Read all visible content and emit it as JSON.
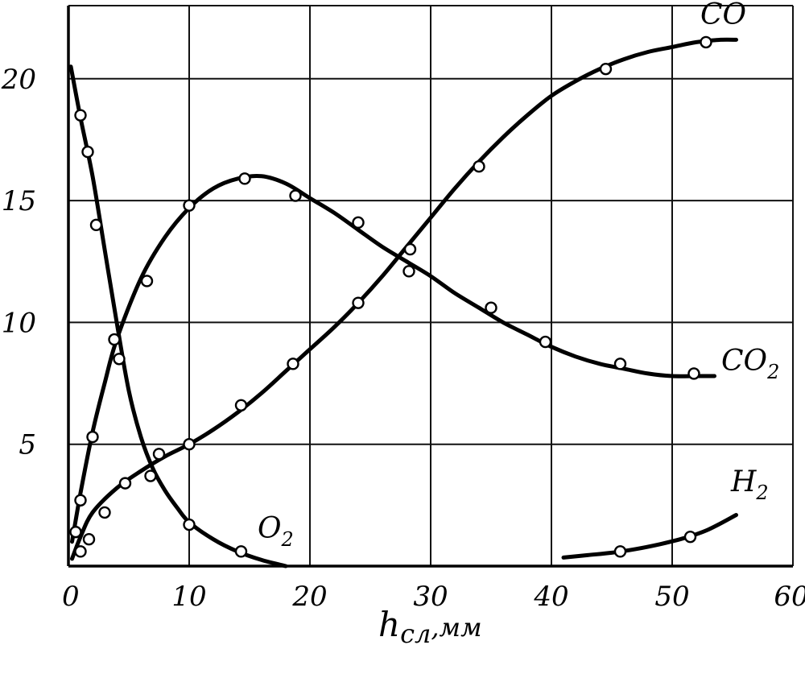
{
  "chart_data": {
    "type": "line",
    "title": "",
    "xlabel": "h",
    "xlabel_sub": "сл",
    "xlabel_unit": ",мм",
    "ylabel": "",
    "xlim": [
      0,
      60
    ],
    "ylim": [
      0,
      23
    ],
    "xticks": [
      "0",
      "10",
      "20",
      "30",
      "40",
      "50",
      "60"
    ],
    "yticks": [
      "5",
      "10",
      "15",
      "20"
    ],
    "grid": true,
    "series": [
      {
        "name": "O",
        "sub": "2",
        "curve": [
          [
            0.2,
            20.5
          ],
          [
            1,
            18.4
          ],
          [
            2,
            16
          ],
          [
            3,
            13
          ],
          [
            4,
            10
          ],
          [
            5,
            7.2
          ],
          [
            6,
            5.3
          ],
          [
            7,
            4
          ],
          [
            8,
            3.1
          ],
          [
            9,
            2.4
          ],
          [
            10,
            1.8
          ],
          [
            12,
            1.1
          ],
          [
            14,
            0.6
          ],
          [
            16,
            0.25
          ],
          [
            18,
            0
          ]
        ],
        "points": [
          [
            1,
            18.5
          ],
          [
            1.6,
            17
          ],
          [
            2.3,
            14
          ],
          [
            4.2,
            8.5
          ],
          [
            6.8,
            3.7
          ],
          [
            10,
            1.7
          ],
          [
            14.3,
            0.6
          ]
        ]
      },
      {
        "name": "CO",
        "sub": "2",
        "curve": [
          [
            0.3,
            1
          ],
          [
            1,
            3
          ],
          [
            2,
            5.5
          ],
          [
            3,
            7.5
          ],
          [
            4,
            9.3
          ],
          [
            6,
            11.8
          ],
          [
            8,
            13.5
          ],
          [
            10,
            14.7
          ],
          [
            12,
            15.5
          ],
          [
            14,
            15.9
          ],
          [
            16,
            16
          ],
          [
            18,
            15.7
          ],
          [
            20,
            15.1
          ],
          [
            22,
            14.5
          ],
          [
            24,
            13.8
          ],
          [
            26,
            13.1
          ],
          [
            28,
            12.5
          ],
          [
            30,
            11.9
          ],
          [
            32,
            11.2
          ],
          [
            34,
            10.6
          ],
          [
            36,
            10
          ],
          [
            38,
            9.5
          ],
          [
            40,
            9
          ],
          [
            42,
            8.6
          ],
          [
            44,
            8.3
          ],
          [
            46,
            8.1
          ],
          [
            48,
            7.9
          ],
          [
            50,
            7.8
          ],
          [
            52,
            7.8
          ],
          [
            53.5,
            7.8
          ]
        ],
        "points": [
          [
            1,
            2.7
          ],
          [
            2,
            5.3
          ],
          [
            3.8,
            9.3
          ],
          [
            6.5,
            11.7
          ],
          [
            10,
            14.8
          ],
          [
            14.6,
            15.9
          ],
          [
            18.8,
            15.2
          ],
          [
            24,
            14.1
          ],
          [
            28.3,
            13
          ],
          [
            35,
            10.6
          ],
          [
            39.5,
            9.2
          ],
          [
            45.7,
            8.3
          ],
          [
            51.8,
            7.9
          ]
        ]
      },
      {
        "name": "CO",
        "sub": "",
        "curve": [
          [
            0.3,
            0.3
          ],
          [
            1,
            1.2
          ],
          [
            2,
            2.2
          ],
          [
            4,
            3.2
          ],
          [
            6,
            3.9
          ],
          [
            8,
            4.5
          ],
          [
            10,
            5
          ],
          [
            12,
            5.6
          ],
          [
            14,
            6.3
          ],
          [
            16,
            7.1
          ],
          [
            18,
            8
          ],
          [
            20,
            8.9
          ],
          [
            22,
            9.8
          ],
          [
            24,
            10.8
          ],
          [
            26,
            11.9
          ],
          [
            28,
            13.1
          ],
          [
            30,
            14.3
          ],
          [
            32,
            15.5
          ],
          [
            34,
            16.6
          ],
          [
            36,
            17.6
          ],
          [
            38,
            18.5
          ],
          [
            40,
            19.3
          ],
          [
            42,
            19.9
          ],
          [
            44,
            20.4
          ],
          [
            46,
            20.8
          ],
          [
            48,
            21.1
          ],
          [
            50,
            21.3
          ],
          [
            52,
            21.5
          ],
          [
            54,
            21.6
          ],
          [
            55.3,
            21.6
          ]
        ],
        "points": [
          [
            0.6,
            1.4
          ],
          [
            1,
            0.6
          ],
          [
            1.7,
            1.1
          ],
          [
            3,
            2.2
          ],
          [
            4.7,
            3.4
          ],
          [
            7.5,
            4.6
          ],
          [
            10,
            5
          ],
          [
            14.3,
            6.6
          ],
          [
            18.6,
            8.3
          ],
          [
            24,
            10.8
          ],
          [
            28.2,
            12.1
          ],
          [
            34,
            16.4
          ],
          [
            44.5,
            20.4
          ],
          [
            52.8,
            21.5
          ]
        ]
      },
      {
        "name": "H",
        "sub": "2",
        "curve": [
          [
            41,
            0.35
          ],
          [
            43,
            0.45
          ],
          [
            45,
            0.55
          ],
          [
            47,
            0.7
          ],
          [
            49,
            0.9
          ],
          [
            51,
            1.15
          ],
          [
            53,
            1.5
          ],
          [
            55.3,
            2.1
          ]
        ],
        "points": [
          [
            45.7,
            0.6
          ],
          [
            51.5,
            1.2
          ]
        ]
      }
    ]
  }
}
